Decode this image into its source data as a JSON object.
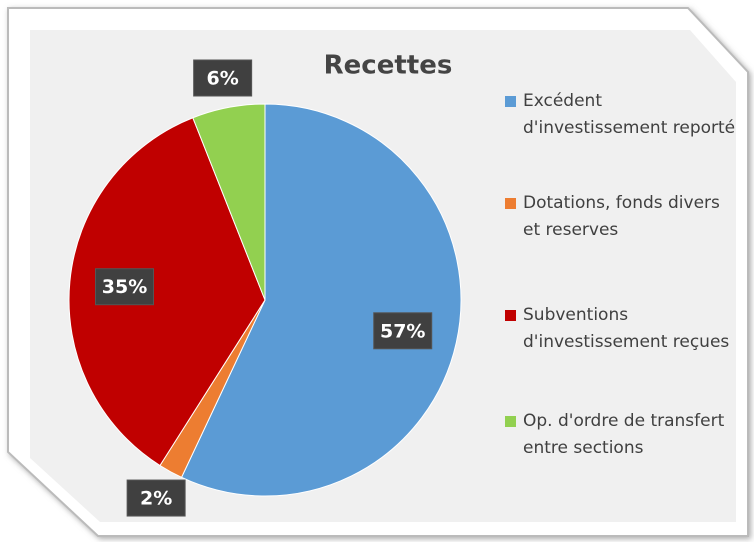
{
  "chart_data": {
    "type": "pie",
    "title": "Recettes",
    "categories": [
      "Excédent d'investissement reporté",
      "Dotations, fonds divers et reserves",
      "Subventions d'investissement reçues",
      "Op. d'ordre de transfert entre sections"
    ],
    "values": [
      57,
      2,
      35,
      6
    ],
    "value_labels": [
      "57%",
      "2%",
      "35%",
      "6%"
    ],
    "colors": [
      "#5b9bd5",
      "#ed7d31",
      "#c00000",
      "#92d050"
    ]
  }
}
